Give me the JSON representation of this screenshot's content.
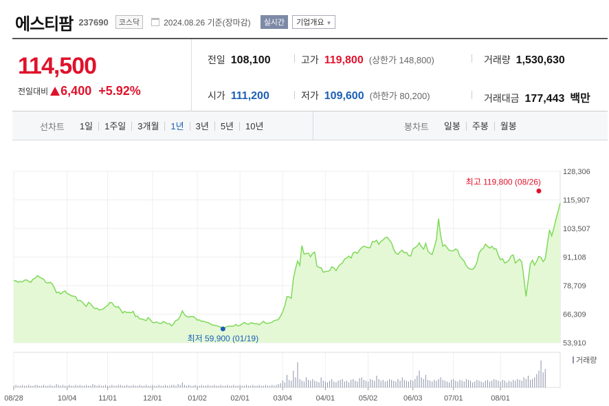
{
  "header": {
    "name": "에스티팜",
    "code": "237690",
    "market": "코스닥",
    "date": "2024.08.26 기준(장마감)",
    "realtime": "실시간",
    "corp": "기업개요"
  },
  "quote": {
    "price": "114,500",
    "change_label": "전일대비",
    "change": "6,400",
    "change_pct": "+5.92%",
    "prev_label": "전일",
    "prev": "108,100",
    "high_label": "고가",
    "high": "119,800",
    "upper": "(상한가 148,800)",
    "volume_label": "거래량",
    "volume": "1,530,630",
    "open_label": "시가",
    "open": "111,200",
    "low_label": "저가",
    "low": "109,600",
    "lower": "(하한가 80,200)",
    "amount_label": "거래대금",
    "amount": "177,443",
    "amount_unit": "백만"
  },
  "tabs": {
    "line_label": "선차트",
    "line_items": [
      "1일",
      "1주일",
      "3개월",
      "1년",
      "3년",
      "5년",
      "10년"
    ],
    "active": "1년",
    "candle_label": "봉차트",
    "candle_items": [
      "일봉",
      "주봉",
      "월봉"
    ]
  },
  "colors": {
    "up": "#e0122b",
    "down": "#1a5fb4",
    "line": "#7ed957",
    "area": "#e4f8d6",
    "volume": "#8a8fa8"
  },
  "chart_data": {
    "type": "area",
    "y_ticks": [
      "128,306",
      "115,907",
      "103,507",
      "91,108",
      "78,709",
      "66,309",
      "53,910"
    ],
    "ylim": [
      53910,
      128306
    ],
    "x_labels": [
      "08/28",
      "10/04",
      "11/01",
      "12/01",
      "01/02",
      "02/01",
      "03/04",
      "04/01",
      "05/02",
      "06/03",
      "07/01",
      "08/01"
    ],
    "x_label_index": [
      0,
      25,
      44,
      65,
      86,
      106,
      126,
      146,
      166,
      187,
      206,
      228
    ],
    "high_annotation": "최고 119,800 (08/26)",
    "low_annotation": "최저 59,900 (01/19)",
    "high_value": 119800,
    "low_value": 59900,
    "high_index": 246,
    "low_index": 98,
    "volume_label": "거래량",
    "prices": [
      80900,
      80800,
      80100,
      80500,
      80300,
      81000,
      81200,
      80500,
      80100,
      81500,
      81900,
      83000,
      82400,
      81900,
      81500,
      80100,
      79800,
      80200,
      79500,
      77800,
      75600,
      75900,
      75100,
      75900,
      76400,
      75200,
      74900,
      74300,
      74100,
      73900,
      72100,
      72300,
      71700,
      70500,
      69700,
      71400,
      70800,
      69600,
      68700,
      68900,
      68100,
      68300,
      68600,
      69500,
      70000,
      71400,
      71200,
      69900,
      69300,
      69600,
      68300,
      66800,
      67500,
      67000,
      67100,
      66900,
      67500,
      65300,
      65500,
      64300,
      64200,
      63900,
      63500,
      64800,
      63800,
      62700,
      62600,
      62900,
      62400,
      62200,
      63100,
      62700,
      62100,
      62200,
      61200,
      62300,
      63600,
      63900,
      65400,
      67700,
      66100,
      65300,
      65000,
      65300,
      65300,
      64700,
      63700,
      63800,
      63200,
      63200,
      62800,
      62700,
      62200,
      61600,
      61500,
      61300,
      61000,
      60600,
      60300,
      60500,
      60900,
      61100,
      61000,
      61100,
      61900,
      61200,
      61400,
      62100,
      62700,
      62200,
      61900,
      62600,
      62400,
      62100,
      62200,
      61700,
      62400,
      63200,
      62400,
      62300,
      62500,
      62800,
      63500,
      63700,
      64000,
      65500,
      67300,
      70000,
      73900,
      73800,
      73200,
      81700,
      86000,
      89400,
      87500,
      96100,
      92400,
      92600,
      92800,
      91200,
      92700,
      93300,
      87200,
      86600,
      86500,
      84500,
      84800,
      84900,
      85200,
      86900,
      86400,
      85200,
      86800,
      87900,
      88500,
      90200,
      90700,
      91500,
      90600,
      92900,
      93300,
      92700,
      94200,
      95200,
      95800,
      95500,
      95100,
      95200,
      97800,
      97700,
      98400,
      96600,
      97900,
      98500,
      99500,
      99700,
      98400,
      97200,
      94400,
      92800,
      92300,
      93400,
      94000,
      92900,
      93100,
      91700,
      91600,
      94600,
      95200,
      95900,
      97300,
      95600,
      94500,
      97000,
      93800,
      92700,
      92200,
      95300,
      98800,
      107800,
      100500,
      95800,
      96400,
      95200,
      94000,
      93800,
      93800,
      94600,
      94000,
      91400,
      90400,
      89300,
      87300,
      86300,
      85800,
      85800,
      86700,
      88800,
      92800,
      94300,
      94900,
      96700,
      95700,
      95000,
      95800,
      94600,
      94700,
      91900,
      89900,
      90400,
      88500,
      89000,
      89700,
      91600,
      92000,
      88500,
      89400,
      90200,
      88900,
      81900,
      74000,
      80900,
      88100,
      89700,
      87600,
      89300,
      91400,
      90900,
      89100,
      90400,
      96800,
      102900,
      100300,
      103500,
      107500,
      110900,
      114500
    ],
    "volume": [
      2,
      3,
      2,
      2,
      3,
      2,
      2,
      3,
      2,
      2,
      3,
      3,
      2,
      2,
      3,
      2,
      2,
      3,
      2,
      2,
      4,
      3,
      2,
      3,
      2,
      2,
      3,
      2,
      2,
      3,
      2,
      3,
      2,
      2,
      3,
      2,
      2,
      4,
      3,
      2,
      3,
      2,
      2,
      3,
      2,
      2,
      3,
      2,
      2,
      3,
      3,
      2,
      2,
      3,
      2,
      2,
      3,
      2,
      2,
      3,
      2,
      2,
      3,
      2,
      2,
      3,
      2,
      2,
      3,
      2,
      2,
      3,
      2,
      2,
      3,
      3,
      2,
      4,
      3,
      6,
      3,
      2,
      3,
      2,
      2,
      3,
      2,
      2,
      3,
      2,
      2,
      3,
      2,
      2,
      3,
      2,
      2,
      3,
      2,
      2,
      3,
      2,
      2,
      3,
      2,
      2,
      3,
      2,
      2,
      3,
      2,
      2,
      3,
      2,
      2,
      3,
      2,
      2,
      3,
      2,
      2,
      3,
      2,
      3,
      4,
      5,
      8,
      6,
      15,
      9,
      8,
      20,
      12,
      30,
      10,
      8,
      7,
      12,
      9,
      8,
      10,
      8,
      7,
      6,
      12,
      8,
      7,
      6,
      8,
      10,
      7,
      6,
      8,
      9,
      10,
      7,
      8,
      6,
      9,
      10,
      8,
      7,
      11,
      12,
      9,
      8,
      7,
      10,
      9,
      8,
      14,
      10,
      8,
      9,
      7,
      8,
      10,
      9,
      8,
      7,
      10,
      8,
      12,
      9,
      8,
      7,
      9,
      8,
      10,
      14,
      20,
      12,
      10,
      15,
      9,
      8,
      7,
      9,
      8,
      10,
      12,
      9,
      8,
      7,
      6,
      9,
      10,
      8,
      7,
      9,
      8,
      7,
      10,
      9,
      8,
      6,
      7,
      9,
      8,
      7,
      6,
      8,
      9,
      7,
      8,
      10,
      9,
      8,
      7,
      9,
      8,
      6,
      8,
      7,
      9,
      8,
      10,
      9,
      8,
      12,
      10,
      14,
      9,
      10,
      12,
      16,
      20,
      32,
      18,
      22
    ]
  }
}
